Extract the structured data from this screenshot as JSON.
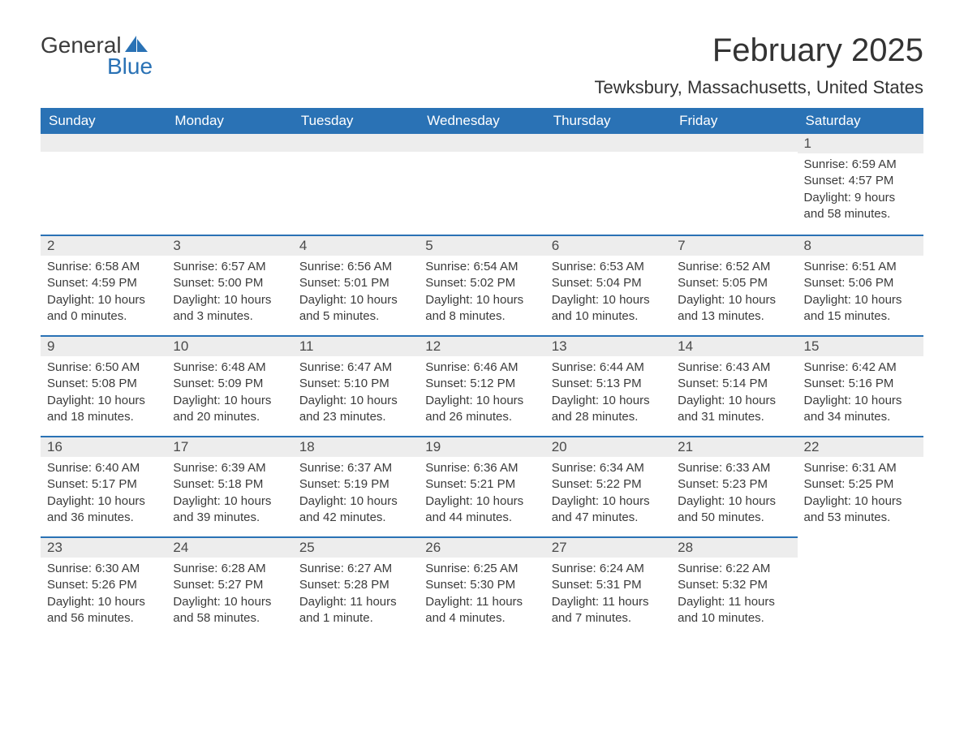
{
  "logo": {
    "word1": "General",
    "word2": "Blue"
  },
  "title": "February 2025",
  "location": "Tewksbury, Massachusetts, United States",
  "colors": {
    "header_bg": "#2a72b5",
    "header_text": "#ffffff",
    "daynum_bg": "#ededed",
    "row_border": "#2a72b5",
    "body_text": "#3b3b3b",
    "title_text": "#333333",
    "logo_blue": "#2a72b5"
  },
  "columns": [
    "Sunday",
    "Monday",
    "Tuesday",
    "Wednesday",
    "Thursday",
    "Friday",
    "Saturday"
  ],
  "weeks": [
    [
      null,
      null,
      null,
      null,
      null,
      null,
      {
        "n": "1",
        "sunrise": "Sunrise: 6:59 AM",
        "sunset": "Sunset: 4:57 PM",
        "daylight": "Daylight: 9 hours and 58 minutes."
      }
    ],
    [
      {
        "n": "2",
        "sunrise": "Sunrise: 6:58 AM",
        "sunset": "Sunset: 4:59 PM",
        "daylight": "Daylight: 10 hours and 0 minutes."
      },
      {
        "n": "3",
        "sunrise": "Sunrise: 6:57 AM",
        "sunset": "Sunset: 5:00 PM",
        "daylight": "Daylight: 10 hours and 3 minutes."
      },
      {
        "n": "4",
        "sunrise": "Sunrise: 6:56 AM",
        "sunset": "Sunset: 5:01 PM",
        "daylight": "Daylight: 10 hours and 5 minutes."
      },
      {
        "n": "5",
        "sunrise": "Sunrise: 6:54 AM",
        "sunset": "Sunset: 5:02 PM",
        "daylight": "Daylight: 10 hours and 8 minutes."
      },
      {
        "n": "6",
        "sunrise": "Sunrise: 6:53 AM",
        "sunset": "Sunset: 5:04 PM",
        "daylight": "Daylight: 10 hours and 10 minutes."
      },
      {
        "n": "7",
        "sunrise": "Sunrise: 6:52 AM",
        "sunset": "Sunset: 5:05 PM",
        "daylight": "Daylight: 10 hours and 13 minutes."
      },
      {
        "n": "8",
        "sunrise": "Sunrise: 6:51 AM",
        "sunset": "Sunset: 5:06 PM",
        "daylight": "Daylight: 10 hours and 15 minutes."
      }
    ],
    [
      {
        "n": "9",
        "sunrise": "Sunrise: 6:50 AM",
        "sunset": "Sunset: 5:08 PM",
        "daylight": "Daylight: 10 hours and 18 minutes."
      },
      {
        "n": "10",
        "sunrise": "Sunrise: 6:48 AM",
        "sunset": "Sunset: 5:09 PM",
        "daylight": "Daylight: 10 hours and 20 minutes."
      },
      {
        "n": "11",
        "sunrise": "Sunrise: 6:47 AM",
        "sunset": "Sunset: 5:10 PM",
        "daylight": "Daylight: 10 hours and 23 minutes."
      },
      {
        "n": "12",
        "sunrise": "Sunrise: 6:46 AM",
        "sunset": "Sunset: 5:12 PM",
        "daylight": "Daylight: 10 hours and 26 minutes."
      },
      {
        "n": "13",
        "sunrise": "Sunrise: 6:44 AM",
        "sunset": "Sunset: 5:13 PM",
        "daylight": "Daylight: 10 hours and 28 minutes."
      },
      {
        "n": "14",
        "sunrise": "Sunrise: 6:43 AM",
        "sunset": "Sunset: 5:14 PM",
        "daylight": "Daylight: 10 hours and 31 minutes."
      },
      {
        "n": "15",
        "sunrise": "Sunrise: 6:42 AM",
        "sunset": "Sunset: 5:16 PM",
        "daylight": "Daylight: 10 hours and 34 minutes."
      }
    ],
    [
      {
        "n": "16",
        "sunrise": "Sunrise: 6:40 AM",
        "sunset": "Sunset: 5:17 PM",
        "daylight": "Daylight: 10 hours and 36 minutes."
      },
      {
        "n": "17",
        "sunrise": "Sunrise: 6:39 AM",
        "sunset": "Sunset: 5:18 PM",
        "daylight": "Daylight: 10 hours and 39 minutes."
      },
      {
        "n": "18",
        "sunrise": "Sunrise: 6:37 AM",
        "sunset": "Sunset: 5:19 PM",
        "daylight": "Daylight: 10 hours and 42 minutes."
      },
      {
        "n": "19",
        "sunrise": "Sunrise: 6:36 AM",
        "sunset": "Sunset: 5:21 PM",
        "daylight": "Daylight: 10 hours and 44 minutes."
      },
      {
        "n": "20",
        "sunrise": "Sunrise: 6:34 AM",
        "sunset": "Sunset: 5:22 PM",
        "daylight": "Daylight: 10 hours and 47 minutes."
      },
      {
        "n": "21",
        "sunrise": "Sunrise: 6:33 AM",
        "sunset": "Sunset: 5:23 PM",
        "daylight": "Daylight: 10 hours and 50 minutes."
      },
      {
        "n": "22",
        "sunrise": "Sunrise: 6:31 AM",
        "sunset": "Sunset: 5:25 PM",
        "daylight": "Daylight: 10 hours and 53 minutes."
      }
    ],
    [
      {
        "n": "23",
        "sunrise": "Sunrise: 6:30 AM",
        "sunset": "Sunset: 5:26 PM",
        "daylight": "Daylight: 10 hours and 56 minutes."
      },
      {
        "n": "24",
        "sunrise": "Sunrise: 6:28 AM",
        "sunset": "Sunset: 5:27 PM",
        "daylight": "Daylight: 10 hours and 58 minutes."
      },
      {
        "n": "25",
        "sunrise": "Sunrise: 6:27 AM",
        "sunset": "Sunset: 5:28 PM",
        "daylight": "Daylight: 11 hours and 1 minute."
      },
      {
        "n": "26",
        "sunrise": "Sunrise: 6:25 AM",
        "sunset": "Sunset: 5:30 PM",
        "daylight": "Daylight: 11 hours and 4 minutes."
      },
      {
        "n": "27",
        "sunrise": "Sunrise: 6:24 AM",
        "sunset": "Sunset: 5:31 PM",
        "daylight": "Daylight: 11 hours and 7 minutes."
      },
      {
        "n": "28",
        "sunrise": "Sunrise: 6:22 AM",
        "sunset": "Sunset: 5:32 PM",
        "daylight": "Daylight: 11 hours and 10 minutes."
      },
      null
    ]
  ]
}
